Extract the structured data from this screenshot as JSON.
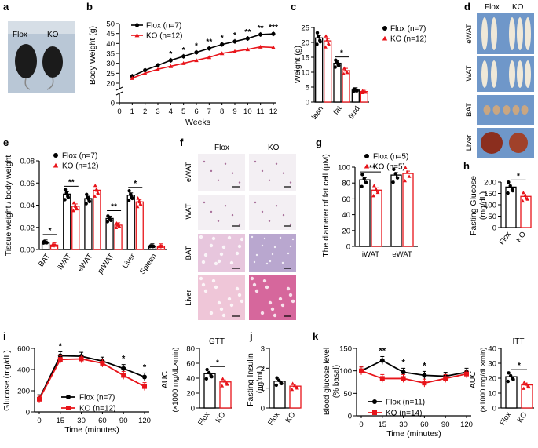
{
  "panels": {
    "a": {
      "label": "a",
      "groups": [
        "Flox",
        "KO"
      ]
    },
    "b": {
      "label": "b",
      "type": "line",
      "ylabel": "Body Weight (g)",
      "xlabel": "Weeks",
      "ylim": [
        0,
        50
      ],
      "yticks": [
        "0",
        "20",
        "25",
        "30",
        "35",
        "40",
        "45",
        "50"
      ],
      "ytick_values": [
        0,
        20,
        25,
        30,
        35,
        40,
        45,
        50
      ],
      "xticks": [
        "0",
        "1",
        "2",
        "3",
        "4",
        "5",
        "6",
        "7",
        "8",
        "9",
        "10",
        "11",
        "12"
      ],
      "weeks": [
        1,
        2,
        3,
        4,
        5,
        6,
        7,
        8,
        9,
        10,
        11,
        12
      ],
      "series": [
        {
          "name": "Flox (n=7)",
          "values": [
            23.5,
            26.5,
            29,
            31.5,
            33.5,
            35.5,
            37.5,
            39.5,
            41,
            42.5,
            44.5,
            44.8
          ]
        },
        {
          "name": "KO (n=12)",
          "values": [
            22.5,
            25,
            27,
            28.5,
            30,
            31.5,
            33,
            35,
            36,
            37,
            38.3,
            38
          ]
        }
      ],
      "sig": [
        "",
        "",
        "",
        "*",
        "*",
        "*",
        "**",
        "*",
        "*",
        "**",
        "**",
        "***"
      ]
    },
    "c": {
      "label": "c",
      "type": "bar",
      "ylabel": "Weight (g)",
      "ylim": [
        0,
        25
      ],
      "yticks": [
        "0",
        "5",
        "10",
        "15",
        "20",
        "25"
      ],
      "ytick_values": [
        0,
        5,
        10,
        15,
        20,
        25
      ],
      "categories": [
        "lean",
        "fat",
        "fluid"
      ],
      "series": [
        {
          "name": "Flox (n=7)",
          "values": [
            21.5,
            13,
            4
          ]
        },
        {
          "name": "KO (n=12)",
          "values": [
            20.5,
            10.5,
            3.5
          ]
        }
      ],
      "sig": [
        "",
        "*",
        ""
      ]
    },
    "d": {
      "label": "d",
      "columns": [
        "Flox",
        "KO"
      ],
      "rows": [
        "eWAT",
        "iWAT",
        "BAT",
        "Liver"
      ]
    },
    "e": {
      "label": "e",
      "type": "bar",
      "ylabel": "Tissue weight / body weight",
      "yticks": [
        "0.00",
        "0.02",
        "0.04",
        "0.06",
        "0.08"
      ],
      "ytick_values": [
        0,
        0.02,
        0.04,
        0.06,
        0.08
      ],
      "ylim": [
        0,
        0.08
      ],
      "categories": [
        "BAT",
        "iWAT",
        "eWAT",
        "prWAT",
        "Liver",
        "Spleen"
      ],
      "series": [
        {
          "name": "Flox (n=7)",
          "values": [
            0.0065,
            0.05,
            0.046,
            0.028,
            0.049,
            0.003
          ]
        },
        {
          "name": "KO (n=12)",
          "values": [
            0.004,
            0.039,
            0.0535,
            0.022,
            0.043,
            0.003
          ]
        }
      ],
      "sig": [
        "*",
        "**",
        "",
        "**",
        "*",
        ""
      ]
    },
    "f": {
      "label": "f",
      "columns": [
        "Flox",
        "KO"
      ],
      "rows": [
        "eWAT",
        "iWAT",
        "BAT",
        "Liver"
      ]
    },
    "g": {
      "label": "g",
      "type": "bar",
      "ylabel": "The diameter of fat cell (μM)",
      "ylim": [
        0,
        100
      ],
      "yticks": [
        "0",
        "20",
        "40",
        "60",
        "80",
        "100"
      ],
      "ytick_values": [
        0,
        20,
        40,
        60,
        80,
        100
      ],
      "categories": [
        "iWAT",
        "eWAT"
      ],
      "series": [
        {
          "name": "Flox (n=5)",
          "values": [
            84,
            90
          ]
        },
        {
          "name": "KO (n=5)",
          "values": [
            71,
            92
          ]
        }
      ],
      "sig": [
        "***",
        ""
      ]
    },
    "h": {
      "label": "h",
      "type": "bar",
      "ylabel": "Fasting Glucose (mg/dL)",
      "ylim": [
        0,
        200
      ],
      "yticks": [
        "0",
        "50",
        "100",
        "150",
        "200"
      ],
      "ytick_values": [
        0,
        50,
        100,
        150,
        200
      ],
      "categories": [
        "Flox",
        "KO"
      ],
      "values": [
        178,
        137
      ],
      "sig": "*"
    },
    "i": {
      "label": "i",
      "type": "line",
      "ylabel": "Glucose (mg/dL)",
      "xlabel": "Time (minutes)",
      "ylim": [
        0,
        600
      ],
      "yticks": [
        "0",
        "200",
        "400",
        "600"
      ],
      "ytick_values": [
        0,
        200,
        400,
        600
      ],
      "xticks": [
        "0",
        "15",
        "30",
        "60",
        "90",
        "120"
      ],
      "series": [
        {
          "name": "Flox (n=7)",
          "values": [
            125,
            530,
            525,
            480,
            410,
            330
          ]
        },
        {
          "name": "KO (n=12)",
          "values": [
            120,
            495,
            500,
            460,
            345,
            240
          ]
        }
      ],
      "sig": [
        "",
        "*",
        "",
        "",
        "*",
        "*"
      ]
    },
    "i_auc": {
      "type": "bar",
      "title": "GTT",
      "ylabel": "AUC (×1000 mg/dL×min)",
      "ylim": [
        0,
        80
      ],
      "yticks": [
        "0",
        "20",
        "40",
        "60",
        "80"
      ],
      "ytick_values": [
        0,
        20,
        40,
        60,
        80
      ],
      "categories": [
        "Flox",
        "KO"
      ],
      "values": [
        46,
        35
      ],
      "sig": "*"
    },
    "j": {
      "label": "j",
      "type": "bar",
      "ylabel": "Fasting Insulin (ng/mL)",
      "ylim": [
        0,
        3
      ],
      "yticks": [
        "0",
        "1",
        "2",
        "3"
      ],
      "ytick_values": [
        0,
        1,
        2,
        3
      ],
      "categories": [
        "Flox",
        "KO"
      ],
      "values": [
        1.35,
        1.1
      ]
    },
    "k": {
      "label": "k",
      "type": "line",
      "ylabel": "Blood glucose level (% basal)",
      "xlabel": "Time (minutes)",
      "ylim": [
        0,
        150
      ],
      "yticks": [
        "0",
        "50",
        "100",
        "150"
      ],
      "ytick_values": [
        0,
        50,
        100,
        150
      ],
      "xticks": [
        "0",
        "15",
        "30",
        "60",
        "90",
        "120"
      ],
      "series": [
        {
          "name": "Flox (n=11)",
          "values": [
            100,
            123,
            97,
            90,
            88,
            97
          ]
        },
        {
          "name": "KO (n=14)",
          "values": [
            100,
            83,
            83,
            73,
            83,
            93
          ]
        }
      ],
      "sig": [
        "",
        "**",
        "*",
        "*",
        "",
        ""
      ]
    },
    "k_auc": {
      "type": "bar",
      "title": "ITT",
      "ylabel": "AUC (×1000 mg/dL×min)",
      "ylim": [
        0,
        40
      ],
      "yticks": [
        "0",
        "10",
        "20",
        "30",
        "40"
      ],
      "ytick_values": [
        0,
        10,
        20,
        30,
        40
      ],
      "categories": [
        "Flox",
        "KO"
      ],
      "values": [
        21,
        15.5
      ],
      "sig": "*"
    }
  },
  "colors": {
    "flox": "#000000",
    "ko": "#e8141a",
    "tissue_bg": "#6f97c9",
    "histo_bg": "#f3eff3"
  }
}
